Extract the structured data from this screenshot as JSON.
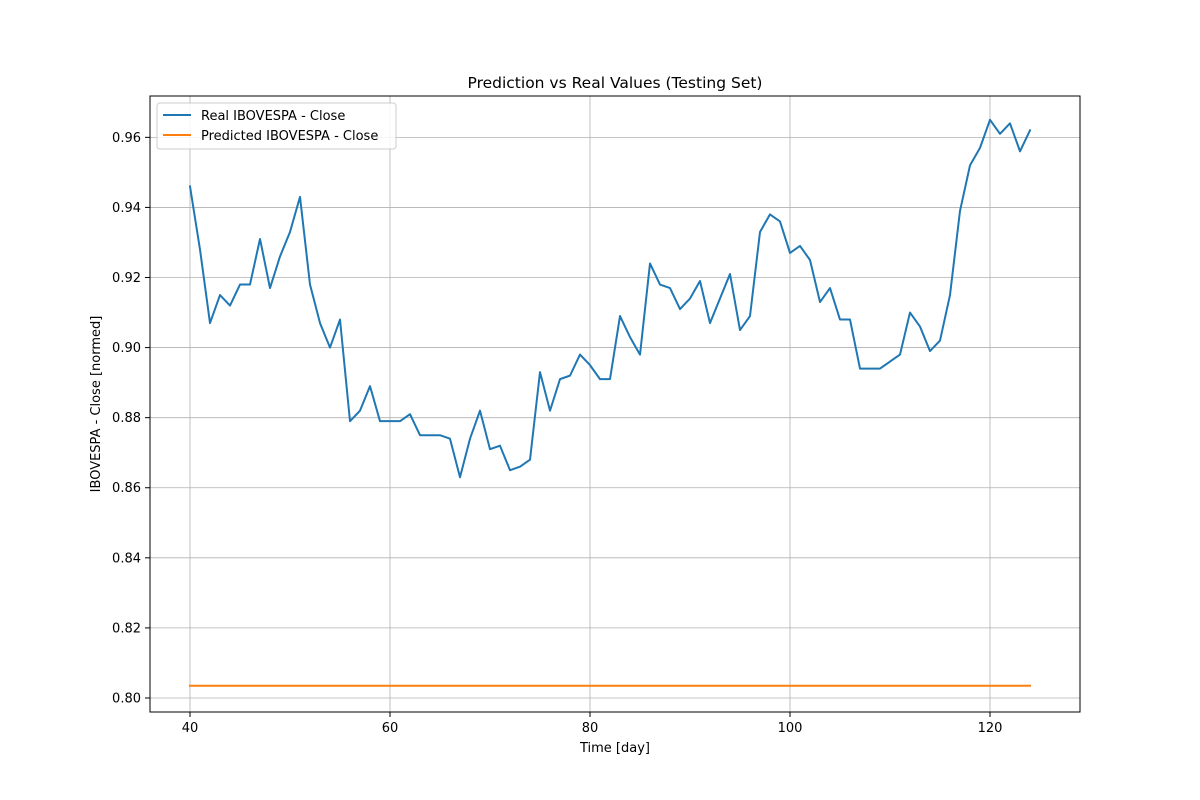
{
  "chart_data": {
    "type": "line",
    "title": "Prediction vs Real Values (Testing Set)",
    "xlabel": "Time [day]",
    "ylabel": "IBOVESPA - Close [normed]",
    "xlim": [
      36,
      129
    ],
    "ylim": [
      0.796,
      0.9718
    ],
    "xticks": [
      40,
      60,
      80,
      100,
      120
    ],
    "yticks": [
      0.8,
      0.82,
      0.84,
      0.86,
      0.88,
      0.9,
      0.92,
      0.94,
      0.96
    ],
    "ytick_labels": [
      "0.80",
      "0.82",
      "0.84",
      "0.86",
      "0.88",
      "0.90",
      "0.92",
      "0.94",
      "0.96"
    ],
    "grid": true,
    "legend_position": "top-left",
    "series": [
      {
        "name": "Real IBOVESPA - Close",
        "color": "#1f77b4",
        "x": [
          40,
          41,
          42,
          43,
          44,
          45,
          46,
          47,
          48,
          49,
          50,
          51,
          52,
          53,
          54,
          55,
          56,
          57,
          58,
          59,
          60,
          61,
          62,
          63,
          64,
          65,
          66,
          67,
          68,
          69,
          70,
          71,
          72,
          73,
          74,
          75,
          76,
          77,
          78,
          79,
          80,
          81,
          82,
          83,
          84,
          85,
          86,
          87,
          88,
          89,
          90,
          91,
          92,
          93,
          94,
          95,
          96,
          97,
          98,
          99,
          100,
          101,
          102,
          103,
          104,
          105,
          106,
          107,
          108,
          109,
          110,
          111,
          112,
          113,
          114,
          115,
          116,
          117,
          118,
          119,
          120,
          121,
          122,
          123,
          124
        ],
        "values": [
          0.946,
          0.928,
          0.907,
          0.915,
          0.912,
          0.918,
          0.918,
          0.931,
          0.917,
          0.926,
          0.933,
          0.943,
          0.918,
          0.907,
          0.9,
          0.908,
          0.879,
          0.882,
          0.889,
          0.879,
          0.879,
          0.879,
          0.881,
          0.875,
          0.875,
          0.875,
          0.874,
          0.863,
          0.874,
          0.882,
          0.871,
          0.872,
          0.865,
          0.866,
          0.868,
          0.893,
          0.882,
          0.891,
          0.892,
          0.898,
          0.895,
          0.891,
          0.891,
          0.909,
          0.903,
          0.898,
          0.924,
          0.918,
          0.917,
          0.911,
          0.914,
          0.919,
          0.907,
          0.914,
          0.921,
          0.905,
          0.909,
          0.933,
          0.938,
          0.936,
          0.927,
          0.929,
          0.925,
          0.913,
          0.917,
          0.908,
          0.908,
          0.894,
          0.894,
          0.894,
          0.896,
          0.898,
          0.91,
          0.906,
          0.899,
          0.902,
          0.915,
          0.939,
          0.952,
          0.957,
          0.965,
          0.961,
          0.964,
          0.956,
          0.962
        ]
      },
      {
        "name": "Predicted IBOVESPA - Close",
        "color": "#ff7f0e",
        "x": [
          40,
          124
        ],
        "values": [
          0.8035,
          0.8035
        ]
      }
    ]
  }
}
